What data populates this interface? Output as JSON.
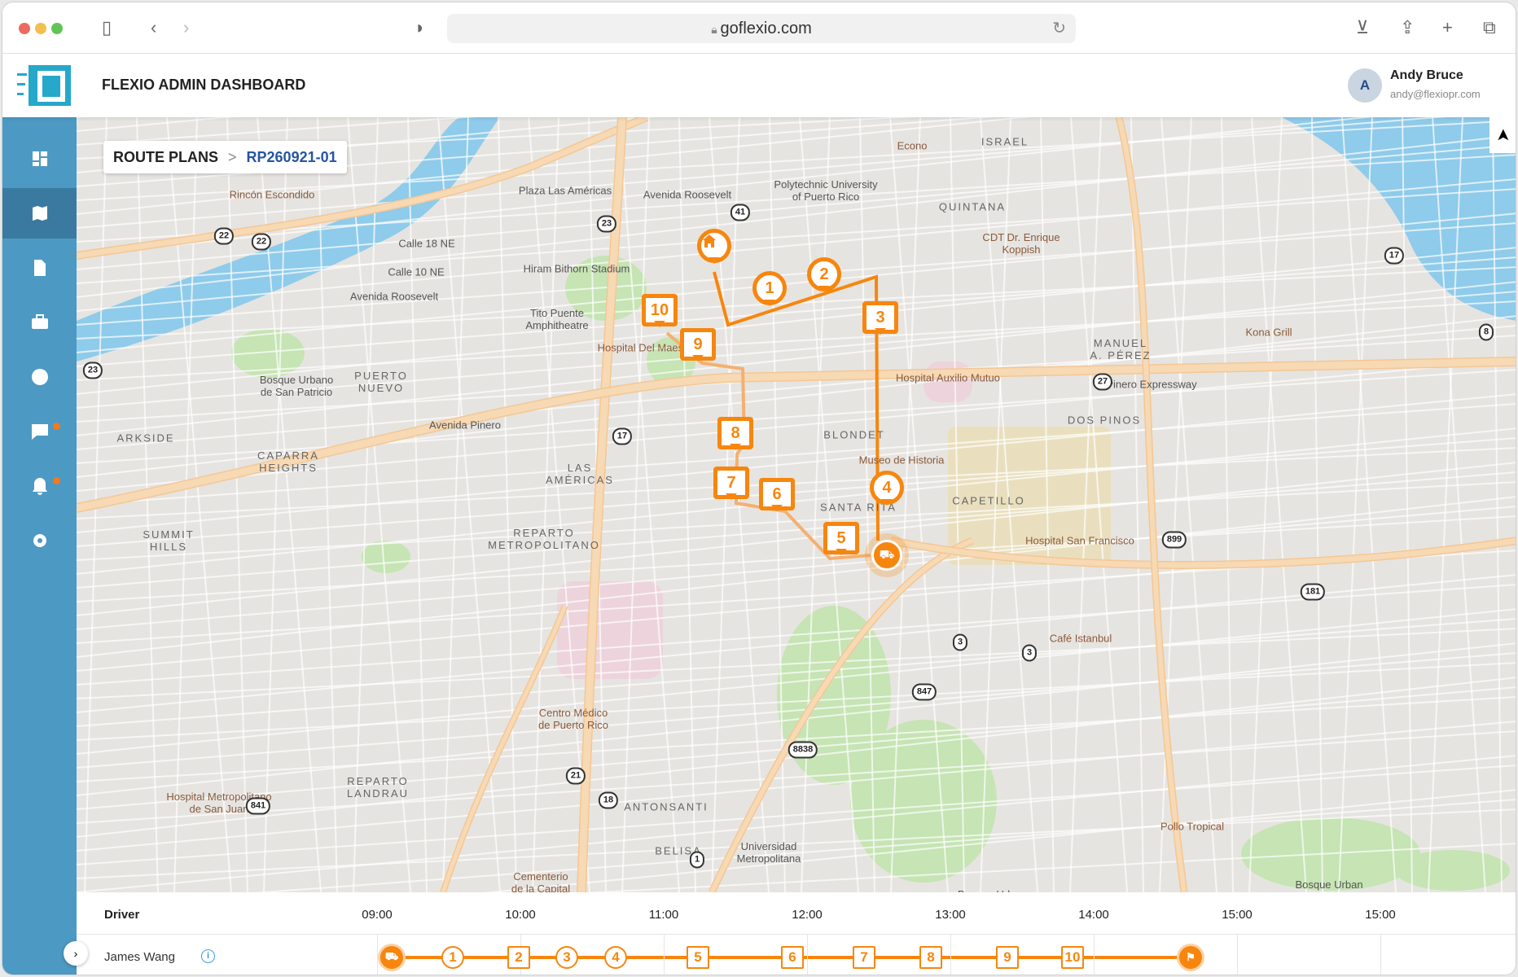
{
  "browser": {
    "url": "goflexio.com"
  },
  "app": {
    "title": "FLEXIO ADMIN DASHBOARD",
    "user": {
      "initial": "A",
      "name": "Andy Bruce",
      "email": "andy@flexiopr.com"
    }
  },
  "sidebar": {
    "items": [
      {
        "icon": "dashboard-icon"
      },
      {
        "icon": "map-icon",
        "active": true
      },
      {
        "icon": "document-icon"
      },
      {
        "icon": "briefcase-icon"
      },
      {
        "icon": "team-icon"
      },
      {
        "icon": "chat-icon",
        "badge": true
      },
      {
        "icon": "bell-icon",
        "badge": true
      },
      {
        "icon": "gear-icon"
      }
    ]
  },
  "breadcrumb": {
    "parent": "ROUTE PLANS",
    "current": "RP260921-01"
  },
  "compass": "➤",
  "map": {
    "labels": [
      "Rincón Escondido",
      "Plaza Las Américas",
      "Avenida Roosevelt",
      "Polytechnic University\nof Puerto Rico",
      "Econo",
      "ISRAEL",
      "QUINTANA",
      "CDT Dr. Enrique\nKoppish",
      "Hiram Bithorn Stadium",
      "Tito Puente\nAmphitheatre",
      "Hospital Del Maestro",
      "Avenida Roosevelt",
      "Bosque Urbano\nde San Patricio",
      "PUERTO\nNUEVO",
      "Hospital Auxilio Mutuo",
      "MANUEL\nA. PÉREZ",
      "Kona Grill",
      "Pinero Expressway",
      "DOS PINOS",
      "Avenida Pinero",
      "CAPARRA\nHEIGHTS",
      "LAS\nAMÉRICAS",
      "BLONDET",
      "Museo de Historia",
      "SANTA RITA",
      "CAPETILLO",
      "Hospital San Francisco",
      "REPARTO\nMETROPOLITANO",
      "SUMMIT\nHILLS",
      "Centro Médico\nde Puerto Rico",
      "Café Istanbul",
      "REPARTO\nLANDRAU",
      "Hospital Metropolitano\nde San Juan",
      "ANTONSANTI",
      "BELISA",
      "Universidad\nMetropolitana",
      "Pollo Tropical",
      "Cementerio\nde la Capital",
      "Bosque Urbano\ndel Nuevo Milenio",
      "Bosque Urban\nDoña Inés Mend",
      "ARKSIDE",
      "Calle 18 NE",
      "Calle 10 NE"
    ],
    "route_shields": [
      "22",
      "22",
      "23",
      "41",
      "23",
      "17",
      "27",
      "17",
      "8",
      "899",
      "181",
      "3",
      "3",
      "847",
      "8838",
      "21",
      "18",
      "841",
      "1"
    ],
    "stops": [
      {
        "label": "home",
        "shape": "circle",
        "icon": "home-icon"
      },
      {
        "label": "1",
        "shape": "circle"
      },
      {
        "label": "2",
        "shape": "circle"
      },
      {
        "label": "3",
        "shape": "square"
      },
      {
        "label": "4",
        "shape": "circle"
      },
      {
        "label": "5",
        "shape": "square"
      },
      {
        "label": "6",
        "shape": "square"
      },
      {
        "label": "7",
        "shape": "square"
      },
      {
        "label": "8",
        "shape": "square"
      },
      {
        "label": "9",
        "shape": "square"
      },
      {
        "label": "10",
        "shape": "square"
      }
    ],
    "accent": "#f7860e"
  },
  "timeline": {
    "driver_header": "Driver",
    "hours": [
      "09:00",
      "10:00",
      "11:00",
      "12:00",
      "13:00",
      "14:00",
      "15:00",
      "15:00"
    ],
    "rows": [
      {
        "driver": "James Wang",
        "info": "i",
        "stops": [
          {
            "label": "⛟",
            "shape": "start"
          },
          {
            "label": "1",
            "shape": "circle"
          },
          {
            "label": "2",
            "shape": "square"
          },
          {
            "label": "3",
            "shape": "circle"
          },
          {
            "label": "4",
            "shape": "circle"
          },
          {
            "label": "5",
            "shape": "square"
          },
          {
            "label": "6",
            "shape": "square"
          },
          {
            "label": "7",
            "shape": "square"
          },
          {
            "label": "8",
            "shape": "square"
          },
          {
            "label": "9",
            "shape": "square"
          },
          {
            "label": "10",
            "shape": "square"
          },
          {
            "label": "⚑",
            "shape": "finish"
          }
        ]
      }
    ]
  }
}
